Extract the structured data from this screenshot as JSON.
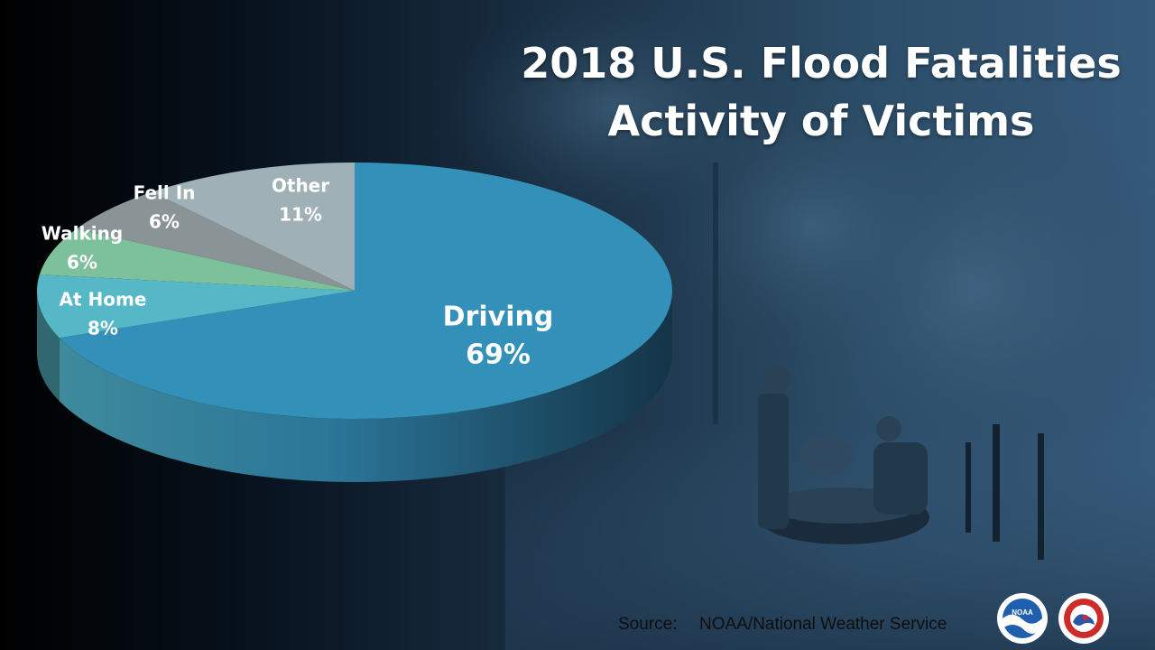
{
  "title": {
    "line1": "2018 U.S. Flood Fatalities",
    "line2": "Activity of Victims"
  },
  "source": {
    "label": "Source:",
    "text": "NOAA/National Weather Service"
  },
  "logos": {
    "noaa_text": "NOAA",
    "nws_text": "NATIONAL WEATHER SERVICE"
  },
  "colors": {
    "driving": "#3390b8",
    "at_home": "#56b8c6",
    "walking": "#7dc09c",
    "fell_in": "#8a9396",
    "other": "#9fb0b6",
    "background_dark": "#0b1a2a",
    "background_photo": "#2e4f6a"
  },
  "chart_data": {
    "type": "pie",
    "style": "3d-tilted",
    "title": "",
    "slices": [
      {
        "label": "Driving",
        "value": 69,
        "value_label": "69%",
        "color": "#3390b8"
      },
      {
        "label": "At Home",
        "value": 8,
        "value_label": "8%",
        "color": "#56b8c6"
      },
      {
        "label": "Walking",
        "value": 6,
        "value_label": "6%",
        "color": "#7dc09c"
      },
      {
        "label": "Fell In",
        "value": 6,
        "value_label": "6%",
        "color": "#8a9396"
      },
      {
        "label": "Other",
        "value": 11,
        "value_label": "11%",
        "color": "#9fb0b6"
      }
    ]
  }
}
